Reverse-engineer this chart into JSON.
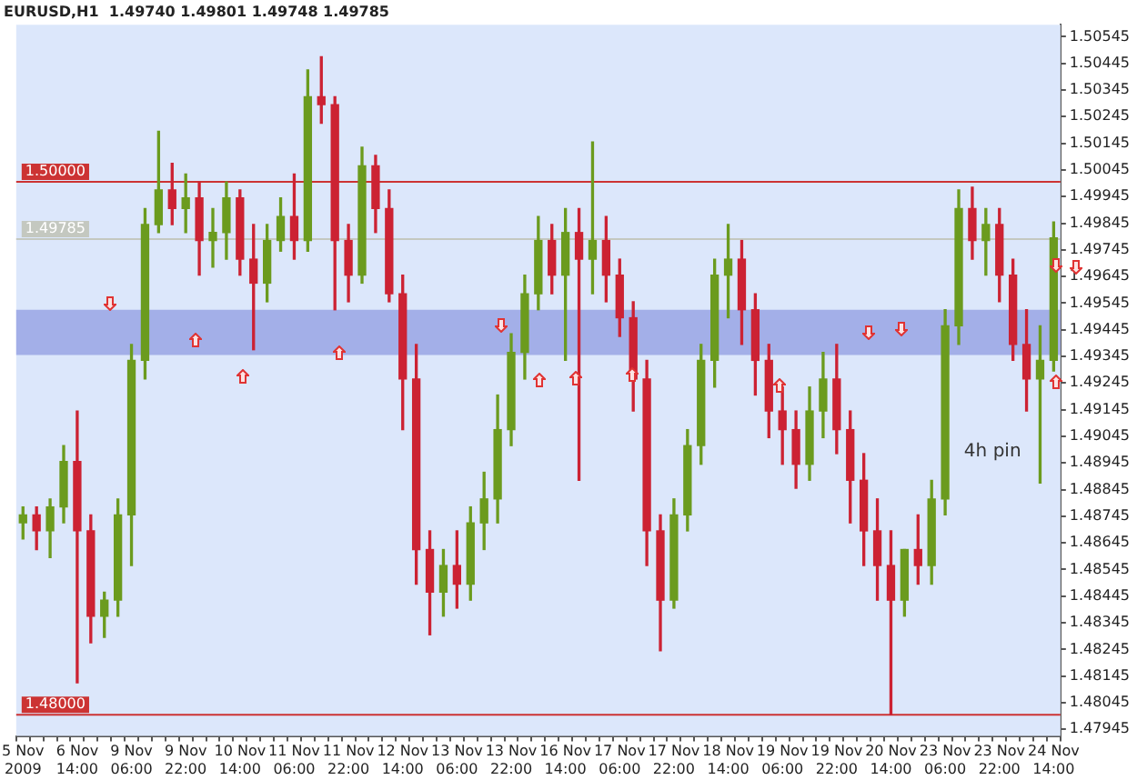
{
  "chart_data": {
    "type": "candlestick",
    "title": "EURUSD,H1  1.49740 1.49801 1.49748 1.49785",
    "categories": [
      "5 Nov 2009",
      null,
      null,
      null,
      "6 Nov 14:00",
      null,
      null,
      null,
      "9 Nov 06:00",
      null,
      null,
      null,
      "9 Nov 22:00",
      null,
      null,
      null,
      "10 Nov 14:00",
      null,
      null,
      null,
      "11 Nov 06:00",
      null,
      null,
      null,
      "11 Nov 22:00",
      null,
      null,
      null,
      "12 Nov 14:00",
      null,
      null,
      null,
      "13 Nov 06:00",
      null,
      null,
      null,
      "13 Nov 22:00",
      null,
      null,
      null,
      "16 Nov 14:00",
      null,
      null,
      null,
      "17 Nov 06:00",
      null,
      null,
      null,
      "17 Nov 22:00",
      null,
      null,
      null,
      "18 Nov 14:00",
      null,
      null,
      null,
      "19 Nov 06:00",
      null,
      null,
      null,
      "19 Nov 22:00",
      null,
      null,
      null,
      "20 Nov 14:00",
      null,
      null,
      null,
      "23 Nov 06:00",
      null,
      null,
      null,
      "23 Nov 22:00",
      null,
      null,
      null,
      "24 Nov 14:00"
    ],
    "ohlc": [
      [
        1.4872,
        1.4878,
        1.4866,
        1.4875
      ],
      [
        1.4875,
        1.4878,
        1.4862,
        1.4869
      ],
      [
        1.4869,
        1.4881,
        1.4859,
        1.4878
      ],
      [
        1.4878,
        1.4901,
        1.4872,
        1.4895
      ],
      [
        1.4895,
        1.4914,
        1.4812,
        1.4869
      ],
      [
        1.4869,
        1.4875,
        1.4827,
        1.4837
      ],
      [
        1.4837,
        1.4846,
        1.4829,
        1.4843
      ],
      [
        1.4843,
        1.4881,
        1.4837,
        1.4875
      ],
      [
        1.4875,
        1.4939,
        1.4856,
        1.4933
      ],
      [
        1.4933,
        1.499,
        1.4926,
        1.4984
      ],
      [
        1.4984,
        1.5019,
        1.4981,
        1.4997
      ],
      [
        1.4997,
        1.5007,
        1.4984,
        1.499
      ],
      [
        1.499,
        1.5003,
        1.4981,
        1.4994
      ],
      [
        1.4994,
        1.5,
        1.4965,
        1.4978
      ],
      [
        1.4978,
        1.499,
        1.4968,
        1.4981
      ],
      [
        1.4981,
        1.5,
        1.4971,
        1.4994
      ],
      [
        1.4994,
        1.4997,
        1.4965,
        1.4971
      ],
      [
        1.4971,
        1.4984,
        1.4937,
        1.4962
      ],
      [
        1.4962,
        1.4984,
        1.4955,
        1.4978
      ],
      [
        1.4978,
        1.4994,
        1.4974,
        1.4987
      ],
      [
        1.4987,
        1.5003,
        1.4971,
        1.4978
      ],
      [
        1.4978,
        1.5042,
        1.4974,
        1.5032
      ],
      [
        1.5032,
        1.5047,
        1.5022,
        1.5029
      ],
      [
        1.5029,
        1.5032,
        1.4952,
        1.4978
      ],
      [
        1.4978,
        1.4984,
        1.4955,
        1.4965
      ],
      [
        1.4965,
        1.5013,
        1.4962,
        1.5006
      ],
      [
        1.5006,
        1.501,
        1.4981,
        1.499
      ],
      [
        1.499,
        1.4997,
        1.4955,
        1.4958
      ],
      [
        1.4958,
        1.4965,
        1.4907,
        1.4926
      ],
      [
        1.4926,
        1.4939,
        1.4849,
        1.4862
      ],
      [
        1.4862,
        1.4869,
        1.483,
        1.4846
      ],
      [
        1.4846,
        1.4862,
        1.4837,
        1.4856
      ],
      [
        1.4856,
        1.4869,
        1.484,
        1.4849
      ],
      [
        1.4849,
        1.4878,
        1.4843,
        1.4872
      ],
      [
        1.4872,
        1.4891,
        1.4862,
        1.4881
      ],
      [
        1.4881,
        1.492,
        1.4872,
        1.4907
      ],
      [
        1.4907,
        1.4943,
        1.4901,
        1.4936
      ],
      [
        1.4936,
        1.4965,
        1.4926,
        1.4958
      ],
      [
        1.4958,
        1.4987,
        1.4952,
        1.4978
      ],
      [
        1.4978,
        1.4984,
        1.4958,
        1.4965
      ],
      [
        1.4965,
        1.499,
        1.4933,
        1.4981
      ],
      [
        1.4981,
        1.499,
        1.4888,
        1.4971
      ],
      [
        1.4971,
        1.5015,
        1.4958,
        1.4978
      ],
      [
        1.4978,
        1.4987,
        1.4955,
        1.4965
      ],
      [
        1.4965,
        1.4971,
        1.4942,
        1.4949
      ],
      [
        1.4949,
        1.4955,
        1.4914,
        1.4926
      ],
      [
        1.4926,
        1.4933,
        1.4856,
        1.4869
      ],
      [
        1.4869,
        1.4875,
        1.4824,
        1.4843
      ],
      [
        1.4843,
        1.4881,
        1.484,
        1.4875
      ],
      [
        1.4875,
        1.4907,
        1.4869,
        1.4901
      ],
      [
        1.4901,
        1.4939,
        1.4894,
        1.4933
      ],
      [
        1.4933,
        1.4971,
        1.4923,
        1.4965
      ],
      [
        1.4965,
        1.4984,
        1.4949,
        1.4971
      ],
      [
        1.4971,
        1.4978,
        1.4939,
        1.4952
      ],
      [
        1.4952,
        1.4958,
        1.492,
        1.4933
      ],
      [
        1.4933,
        1.4939,
        1.4904,
        1.4914
      ],
      [
        1.4914,
        1.4923,
        1.4894,
        1.4907
      ],
      [
        1.4907,
        1.4914,
        1.4885,
        1.4894
      ],
      [
        1.4894,
        1.4923,
        1.4888,
        1.4914
      ],
      [
        1.4914,
        1.4936,
        1.4904,
        1.4926
      ],
      [
        1.4926,
        1.4939,
        1.4898,
        1.4907
      ],
      [
        1.4907,
        1.4914,
        1.4872,
        1.4888
      ],
      [
        1.4888,
        1.4898,
        1.4856,
        1.4869
      ],
      [
        1.4869,
        1.4881,
        1.4843,
        1.4856
      ],
      [
        1.4856,
        1.4869,
        1.48,
        1.4843
      ],
      [
        1.4843,
        1.4862,
        1.4837,
        1.4862
      ],
      [
        1.4862,
        1.4875,
        1.4849,
        1.4856
      ],
      [
        1.4856,
        1.4888,
        1.4849,
        1.4881
      ],
      [
        1.4881,
        1.4952,
        1.4875,
        1.4946
      ],
      [
        1.4946,
        1.4997,
        1.4939,
        1.499
      ],
      [
        1.499,
        1.4998,
        1.4971,
        1.4978
      ],
      [
        1.4978,
        1.499,
        1.4965,
        1.4984
      ],
      [
        1.4984,
        1.499,
        1.4955,
        1.4965
      ],
      [
        1.4965,
        1.4971,
        1.4933,
        1.4939
      ],
      [
        1.4939,
        1.4952,
        1.4914,
        1.4926
      ],
      [
        1.4926,
        1.4946,
        1.4887,
        1.4933
      ],
      [
        1.4933,
        1.4985,
        1.4929,
        1.4979
      ]
    ],
    "ylim": [
      1.4792,
      1.5059
    ],
    "yticks": [
      1.50545,
      1.50445,
      1.50345,
      1.50245,
      1.50145,
      1.50045,
      1.49945,
      1.49845,
      1.49745,
      1.49645,
      1.49545,
      1.49445,
      1.49345,
      1.49245,
      1.49145,
      1.49045,
      1.48945,
      1.48845,
      1.48745,
      1.48645,
      1.48545,
      1.48445,
      1.48345,
      1.48245,
      1.48145,
      1.48045,
      1.47945
    ],
    "bands": [
      {
        "axis": "y",
        "from": 1.4935,
        "to": 1.4952,
        "color": "#a3afe8"
      }
    ],
    "ref_lines": [
      {
        "axis": "y",
        "value": 1.5,
        "label": "1.50000",
        "color": "#cc3333"
      },
      {
        "axis": "y",
        "value": 1.48,
        "label": "1.48000",
        "color": "#cc3333"
      },
      {
        "axis": "y",
        "value": 1.49785,
        "label": "1.49785",
        "color": "#c4c8c0"
      }
    ],
    "annotations": [
      "4h pin"
    ]
  }
}
